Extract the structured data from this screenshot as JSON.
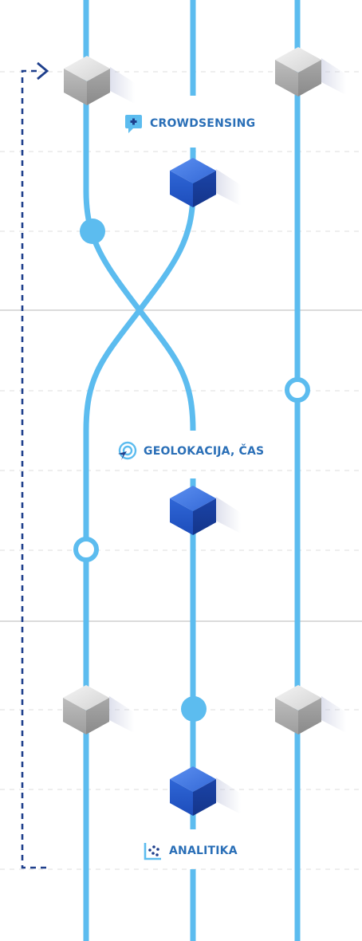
{
  "labels": {
    "crowdsensing": "CROWDSENSING",
    "geolocation": "GEOLOKACIJA, ČAS",
    "analytics": "ANALITIKA"
  },
  "icons": {
    "crowdsensing": "chat-plus-icon",
    "geolocation": "target-cursor-icon",
    "analytics": "scatter-plot-icon"
  },
  "colors": {
    "track": "#5cbcef",
    "dashed_loop": "#1e3f8c",
    "label_text": "#2a6fb7",
    "blue_cube": "#2255c5",
    "gray_cube": "#c6c6c6",
    "separator": "#cfcfcf",
    "grid": "#e4e4e4"
  }
}
